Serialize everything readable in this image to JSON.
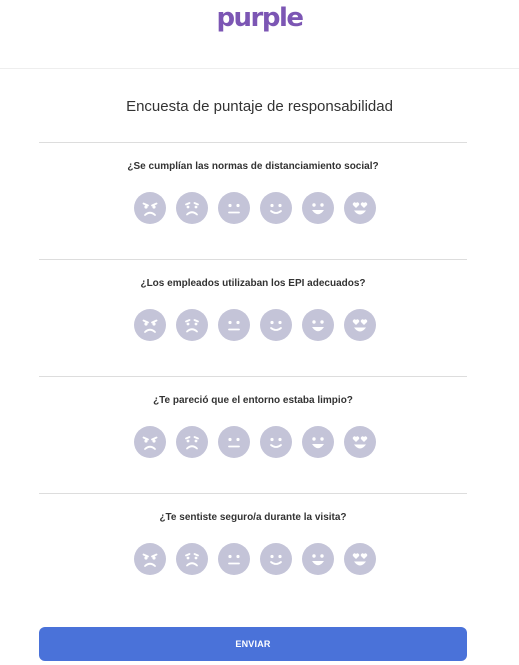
{
  "header": {
    "logo_text": "purple"
  },
  "survey": {
    "title": "Encuesta de puntaje de responsabilidad",
    "questions": [
      {
        "text": "¿Se cumplían las normas de distanciamiento social?"
      },
      {
        "text": "¿Los empleados utilizaban los EPI adecuados?"
      },
      {
        "text": "¿Te pareció que el entorno estaba limpio?"
      },
      {
        "text": "¿Te sentiste seguro/a durante la visita?"
      }
    ],
    "rating_faces": [
      "angry-face-icon",
      "sad-face-icon",
      "neutral-face-icon",
      "slight-smile-face-icon",
      "happy-face-icon",
      "heart-eyes-face-icon"
    ]
  },
  "submit": {
    "label": "ENVIAR"
  },
  "colors": {
    "brand": "#7c56b4",
    "button": "#4a72d9",
    "face": "#c4c4d8"
  }
}
